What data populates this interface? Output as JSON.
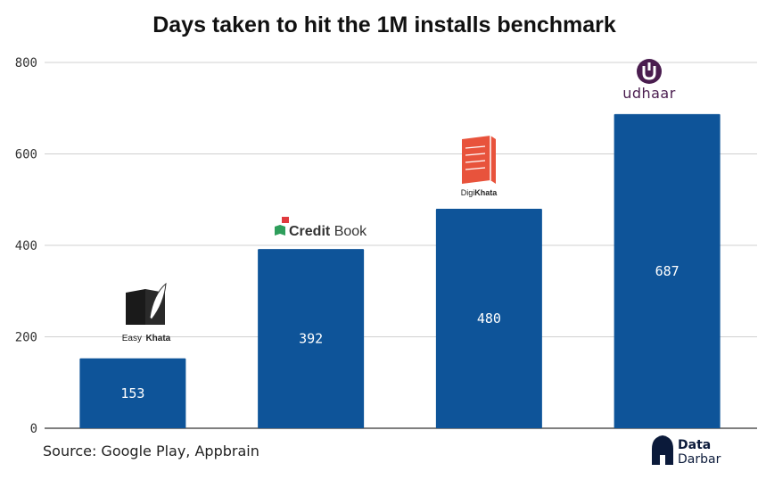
{
  "chart_data": {
    "type": "bar",
    "title": "Days taken to hit the 1M installs benchmark",
    "categories": [
      "Easy Khata",
      "CreditBook",
      "DigiKhata",
      "udhaar"
    ],
    "values": [
      153,
      392,
      480,
      687
    ],
    "data_labels": [
      "153",
      "392",
      "480",
      "687"
    ],
    "ylim": [
      0,
      800
    ],
    "yticks": [
      0,
      200,
      400,
      600,
      800
    ],
    "ytick_labels": [
      "0",
      "200",
      "400",
      "600",
      "800"
    ],
    "grid": true,
    "bar_color": "#0e5499"
  },
  "brands": {
    "easy_khata": {
      "part1": "Easy",
      "part2": "Khata"
    },
    "creditbook": {
      "part1": "Credit",
      "part2": "Book"
    },
    "digikhata": {
      "part1": "Digi",
      "part2": "Khata"
    },
    "udhaar": {
      "text": "udhaar"
    }
  },
  "source": "Source: Google Play, Appbrain",
  "watermark": {
    "line1": "Data",
    "line2": "Darbar"
  },
  "colors": {
    "bar": "#0e5499",
    "grid": "#d0d0d0",
    "credit_green": "#2e9e5b",
    "credit_red": "#e03a3e",
    "digi_red": "#e8533c",
    "udhaar_purple": "#4a1d4f"
  }
}
